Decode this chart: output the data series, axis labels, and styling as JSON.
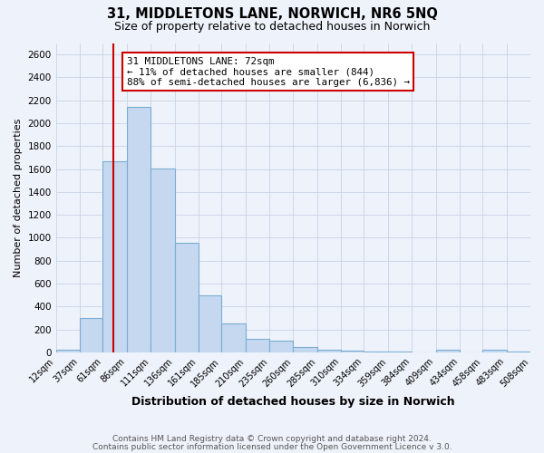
{
  "title": "31, MIDDLETONS LANE, NORWICH, NR6 5NQ",
  "subtitle": "Size of property relative to detached houses in Norwich",
  "xlabel": "Distribution of detached houses by size in Norwich",
  "ylabel": "Number of detached properties",
  "bar_color": "#c5d8f0",
  "bar_edge_color": "#7aadd4",
  "background_color": "#eef2fa",
  "grid_color": "#c8d4e8",
  "bins": [
    12,
    37,
    61,
    86,
    111,
    136,
    161,
    185,
    210,
    235,
    260,
    285,
    310,
    334,
    359,
    384,
    409,
    434,
    458,
    483,
    508
  ],
  "counts": [
    20,
    300,
    1670,
    2140,
    1605,
    960,
    500,
    250,
    120,
    100,
    45,
    20,
    12,
    8,
    5,
    3,
    20,
    3,
    20,
    5
  ],
  "property_size": 72,
  "annotation_title": "31 MIDDLETONS LANE: 72sqm",
  "annotation_line1": "← 11% of detached houses are smaller (844)",
  "annotation_line2": "88% of semi-detached houses are larger (6,836) →",
  "vline_color": "#cc0000",
  "annotation_box_color": "#ffffff",
  "annotation_box_edge": "#cc0000",
  "footer1": "Contains HM Land Registry data © Crown copyright and database right 2024.",
  "footer2": "Contains public sector information licensed under the Open Government Licence v 3.0.",
  "ylim": [
    0,
    2700
  ],
  "yticks": [
    0,
    200,
    400,
    600,
    800,
    1000,
    1200,
    1400,
    1600,
    1800,
    2000,
    2200,
    2400,
    2600
  ]
}
